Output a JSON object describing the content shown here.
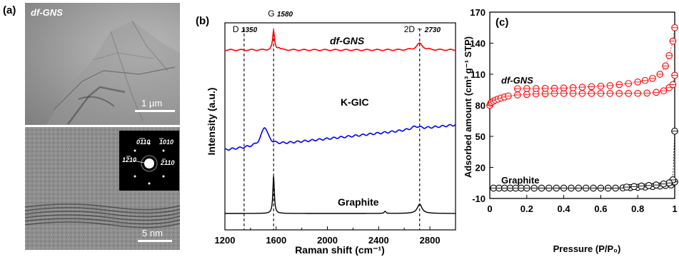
{
  "panel_a": {
    "letter": "(a)",
    "top_image_label": "df-GNS",
    "top_scale": "1 µm",
    "bottom_scale": "5 nm",
    "saed_labels": [
      "0110",
      "1010",
      "1210",
      "2110"
    ]
  },
  "chart_data": [
    {
      "type": "line",
      "panel": "(b)",
      "xlabel": "Raman shift (cm⁻¹)",
      "ylabel": "Intensity (a.u.)",
      "xlim": [
        1200,
        3000
      ],
      "xticks": [
        1200,
        1600,
        2000,
        2400,
        2800
      ],
      "grid": false,
      "peak_annotations": [
        {
          "label": "D",
          "value": "1350",
          "x": 1350
        },
        {
          "label": "G",
          "value": "1580",
          "x": 1580
        },
        {
          "label": "2D ~",
          "value": "2730",
          "x": 2720
        }
      ],
      "series": [
        {
          "name": "df-GNS",
          "color": "#ff0000",
          "peaks": [
            {
              "x": 1580,
              "height": "strong"
            },
            {
              "x": 2720,
              "height": "weak"
            }
          ]
        },
        {
          "name": "K-GIC",
          "color": "#0000ff",
          "peaks": [
            {
              "x": 1510,
              "height": "medium"
            },
            {
              "x": 2700,
              "height": "weak"
            }
          ]
        },
        {
          "name": "Graphite",
          "color": "#000000",
          "peaks": [
            {
              "x": 1580,
              "height": "strong"
            },
            {
              "x": 2720,
              "height": "weak"
            }
          ]
        }
      ]
    },
    {
      "type": "scatter",
      "panel": "(c)",
      "xlabel": "Pressure (P/P₀)",
      "ylabel": "Adsorbed amount (cm³ g⁻¹ STP)",
      "xlim": [
        0,
        1
      ],
      "ylim": [
        -10,
        170
      ],
      "xticks": [
        "0",
        "0.2",
        "0.4",
        "0.6",
        "0.8",
        "1"
      ],
      "yticks": [
        -10,
        20,
        50,
        80,
        110,
        140,
        170
      ],
      "grid": false,
      "series": [
        {
          "name": "df-GNS",
          "color": "#ff0000",
          "adsorption": [
            [
              0.0,
              80
            ],
            [
              0.005,
              82
            ],
            [
              0.01,
              83
            ],
            [
              0.02,
              84
            ],
            [
              0.03,
              85
            ],
            [
              0.045,
              86
            ],
            [
              0.06,
              87
            ],
            [
              0.08,
              88
            ],
            [
              0.1,
              89
            ],
            [
              0.15,
              90
            ],
            [
              0.2,
              90.5
            ],
            [
              0.25,
              91
            ],
            [
              0.3,
              91.2
            ],
            [
              0.35,
              91.5
            ],
            [
              0.4,
              91.5
            ],
            [
              0.45,
              91.5
            ],
            [
              0.5,
              91.5
            ],
            [
              0.55,
              91.5
            ],
            [
              0.6,
              91.5
            ],
            [
              0.65,
              91.5
            ],
            [
              0.7,
              91.5
            ],
            [
              0.75,
              91.5
            ],
            [
              0.8,
              91.6
            ],
            [
              0.85,
              91.8
            ],
            [
              0.9,
              92.5
            ],
            [
              0.94,
              94
            ],
            [
              0.97,
              97
            ],
            [
              0.99,
              100
            ],
            [
              1.0,
              109
            ]
          ],
          "desorption": [
            [
              1.0,
              155
            ],
            [
              0.99,
              142
            ],
            [
              0.97,
              128
            ],
            [
              0.95,
              118
            ],
            [
              0.92,
              110
            ],
            [
              0.88,
              106
            ],
            [
              0.84,
              104
            ],
            [
              0.8,
              102.5
            ],
            [
              0.75,
              101
            ],
            [
              0.7,
              100
            ],
            [
              0.65,
              99
            ],
            [
              0.6,
              98.5
            ],
            [
              0.55,
              98
            ],
            [
              0.5,
              97.5
            ],
            [
              0.45,
              97
            ],
            [
              0.4,
              96.7
            ],
            [
              0.35,
              96.5
            ],
            [
              0.3,
              96.3
            ],
            [
              0.25,
              96.2
            ],
            [
              0.2,
              96.2
            ],
            [
              0.15,
              96
            ]
          ]
        },
        {
          "name": "Graphite",
          "color": "#000000",
          "adsorption": [
            [
              0.02,
              0
            ],
            [
              0.05,
              0
            ],
            [
              0.08,
              0
            ],
            [
              0.11,
              0
            ],
            [
              0.14,
              0
            ],
            [
              0.17,
              0
            ],
            [
              0.2,
              0
            ],
            [
              0.24,
              0
            ],
            [
              0.28,
              0
            ],
            [
              0.32,
              0
            ],
            [
              0.36,
              0
            ],
            [
              0.4,
              0
            ],
            [
              0.44,
              0
            ],
            [
              0.48,
              0
            ],
            [
              0.52,
              0
            ],
            [
              0.56,
              0
            ],
            [
              0.6,
              0
            ],
            [
              0.64,
              0
            ],
            [
              0.68,
              0
            ],
            [
              0.72,
              0.2
            ],
            [
              0.76,
              0.5
            ],
            [
              0.8,
              0.8
            ],
            [
              0.84,
              1
            ],
            [
              0.88,
              1.5
            ],
            [
              0.92,
              2
            ],
            [
              0.95,
              2.5
            ],
            [
              0.98,
              3
            ],
            [
              1.0,
              6
            ]
          ],
          "desorption": [
            [
              1.0,
              55
            ],
            [
              0.99,
              8
            ],
            [
              0.97,
              5
            ],
            [
              0.94,
              4
            ],
            [
              0.9,
              3
            ],
            [
              0.86,
              2.5
            ],
            [
              0.82,
              2
            ],
            [
              0.78,
              1.5
            ],
            [
              0.74,
              1
            ]
          ]
        }
      ]
    }
  ]
}
